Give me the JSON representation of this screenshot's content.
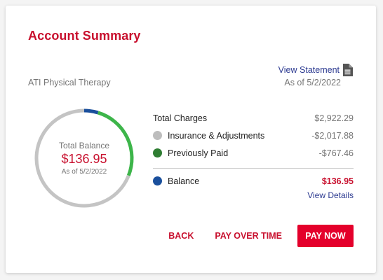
{
  "card": {
    "title": "Account Summary",
    "provider": "ATI Physical Therapy",
    "view_statement_label": "View Statement",
    "statement_icon": "document-icon",
    "statement_date": "As of 5/2/2022"
  },
  "donut": {
    "center_label": "Total Balance",
    "center_amount": "$136.95",
    "center_date": "As of 5/2/2022",
    "segments": [
      {
        "name": "Balance",
        "value": 136.95,
        "color": "#1a4f9c"
      },
      {
        "name": "Previously Paid",
        "value": 767.46,
        "color": "#3db54a"
      },
      {
        "name": "Insurance & Adjustments",
        "value": 2017.88,
        "color": "#c4c4c4"
      }
    ]
  },
  "summary": {
    "total_charges_label": "Total Charges",
    "total_charges_value": "$2,922.29",
    "insurance_label": "Insurance & Adjustments",
    "insurance_value": "-$2,017.88",
    "insurance_color": "#bdbdbd",
    "paid_label": "Previously Paid",
    "paid_value": "-$767.46",
    "paid_color": "#2e7d32",
    "balance_label": "Balance",
    "balance_value": "$136.95",
    "balance_color": "#1a4f9c",
    "view_details_label": "View Details"
  },
  "actions": {
    "back_label": "BACK",
    "pay_over_time_label": "PAY OVER TIME",
    "pay_now_label": "PAY NOW"
  }
}
